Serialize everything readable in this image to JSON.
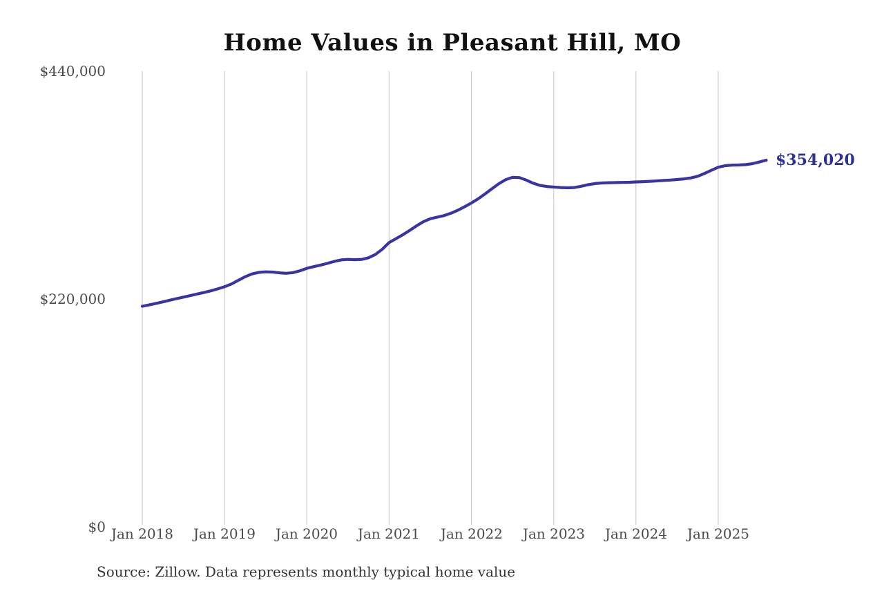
{
  "title": "Home Values in Pleasant Hill, MO",
  "source_note": "Source: Zillow. Data represents monthly typical home value",
  "end_label": "$354,020",
  "colors": {
    "line": "#3a34a3",
    "end_label_text": "#2e3192",
    "gridline": "#cccccc",
    "axis_text": "#4a4a4a",
    "title_text": "#111111",
    "source_text": "#333333",
    "background": "#ffffff"
  },
  "chart_data": {
    "type": "line",
    "title": "Home Values in Pleasant Hill, MO",
    "xlabel": "",
    "ylabel": "",
    "x_start_month": "Jan 2018",
    "x_end_month": "Aug 2025",
    "months_per_x_tick": 12,
    "x_tick_labels": [
      "Jan 2018",
      "Jan 2019",
      "Jan 2020",
      "Jan 2021",
      "Jan 2022",
      "Jan 2023",
      "Jan 2024",
      "Jan 2025"
    ],
    "y_ticks": [
      0,
      220000,
      440000
    ],
    "y_tick_labels": [
      "$0",
      "$220,000",
      "$440,000"
    ],
    "ylim": [
      0,
      440000
    ],
    "grid": "vertical-yearly-only",
    "legend": "none",
    "last_point_annotation": "$354,020",
    "series": [
      {
        "name": "Monthly typical home value",
        "values": [
          213000,
          214300,
          215700,
          217200,
          218800,
          220300,
          221800,
          223300,
          224800,
          226300,
          227900,
          229700,
          231800,
          234500,
          238000,
          241500,
          244200,
          245700,
          246200,
          246000,
          245300,
          244800,
          245500,
          247300,
          249600,
          251200,
          252700,
          254400,
          256300,
          257700,
          258200,
          257900,
          258200,
          259800,
          263000,
          268000,
          274500,
          278200,
          282000,
          286200,
          290600,
          294600,
          297500,
          299000,
          300500,
          302700,
          305600,
          309000,
          312700,
          316800,
          321500,
          326500,
          331300,
          335200,
          337500,
          337200,
          334800,
          331800,
          329700,
          328600,
          328100,
          327600,
          327300,
          327600,
          328800,
          330300,
          331400,
          332000,
          332300,
          332400,
          332500,
          332700,
          333000,
          333300,
          333600,
          334000,
          334400,
          334800,
          335300,
          335900,
          336900,
          338500,
          341200,
          344300,
          347200,
          348700,
          349300,
          349400,
          349700,
          350700,
          352300,
          354020
        ]
      }
    ]
  }
}
